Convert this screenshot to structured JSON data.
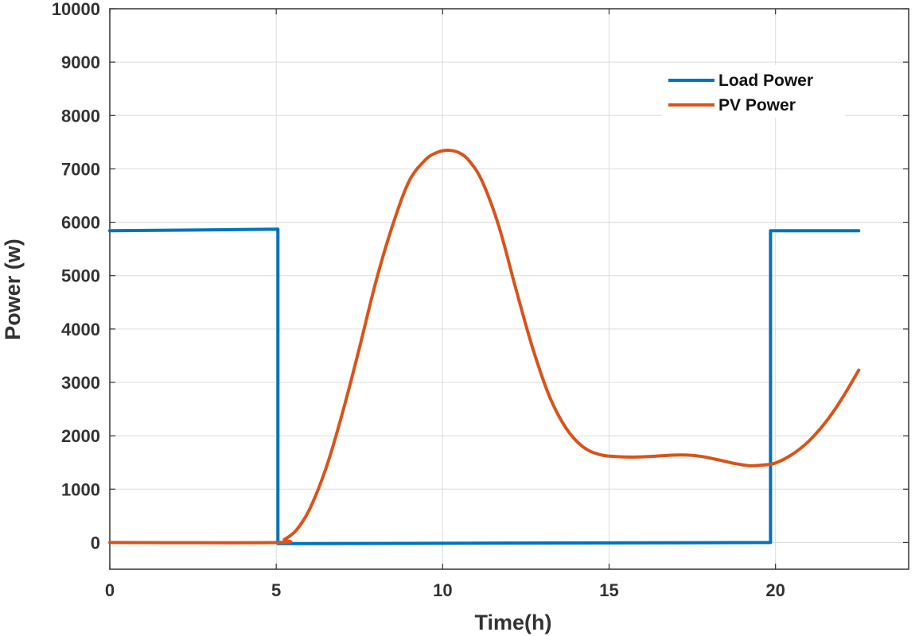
{
  "chart_data": {
    "type": "line",
    "xlabel": "Time(h)",
    "ylabel": "Power (w)",
    "xlim": [
      0,
      24
    ],
    "ylim": [
      -500,
      10000
    ],
    "xticks": [
      0,
      5,
      10,
      15,
      20
    ],
    "yticks": [
      0,
      1000,
      2000,
      3000,
      4000,
      5000,
      6000,
      7000,
      8000,
      9000,
      10000
    ],
    "xtick_labels": [
      "0",
      "5",
      "10",
      "15",
      "20"
    ],
    "ytick_labels": [
      "0",
      "1000",
      "2000",
      "3000",
      "4000",
      "5000",
      "6000",
      "7000",
      "8000",
      "9000",
      "10000"
    ],
    "grid": true,
    "legend_position": "top-right",
    "series": [
      {
        "name": "Load Power",
        "color": "#0072BD",
        "x": [
          0,
          5.05,
          5.05,
          19.85,
          19.85,
          22.5
        ],
        "y": [
          5840,
          5870,
          -20,
          0,
          5840,
          5840
        ]
      },
      {
        "name": "PV Power",
        "color": "#D95319",
        "x": [
          0,
          5.0,
          5.25,
          5.6,
          6.0,
          6.5,
          7.0,
          7.5,
          8.0,
          8.5,
          9.0,
          9.5,
          9.8,
          10.0,
          10.25,
          10.5,
          10.8,
          11.2,
          11.7,
          12.2,
          12.7,
          13.2,
          13.7,
          14.2,
          14.7,
          15.2,
          15.7,
          16.2,
          16.7,
          17.2,
          17.7,
          18.2,
          18.7,
          19.2,
          19.6,
          20.0,
          20.5,
          21.0,
          21.5,
          22.0,
          22.5
        ],
        "y": [
          0,
          0,
          60,
          230,
          620,
          1400,
          2450,
          3650,
          4900,
          5950,
          6780,
          7180,
          7300,
          7340,
          7345,
          7300,
          7150,
          6750,
          5900,
          4750,
          3650,
          2750,
          2150,
          1800,
          1650,
          1610,
          1600,
          1610,
          1630,
          1640,
          1620,
          1560,
          1490,
          1440,
          1450,
          1490,
          1650,
          1900,
          2250,
          2700,
          3230
        ]
      }
    ]
  }
}
